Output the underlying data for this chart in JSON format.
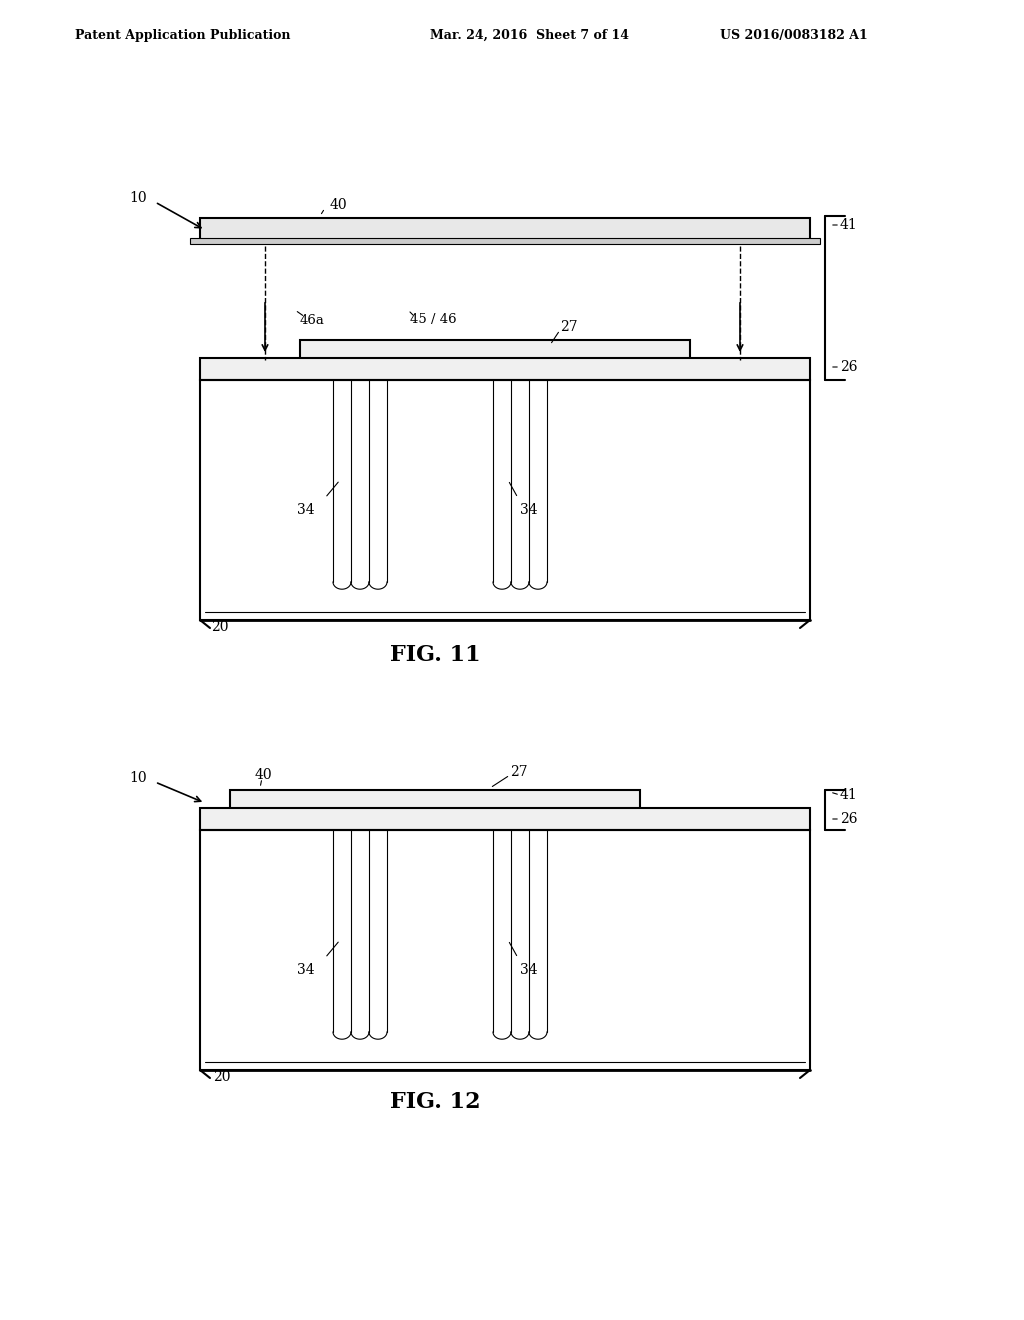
{
  "bg_color": "#ffffff",
  "header_left": "Patent Application Publication",
  "header_mid": "Mar. 24, 2016  Sheet 7 of 14",
  "header_right": "US 2016/0083182 A1",
  "fig11_label": "FIG. 11",
  "fig12_label": "FIG. 12",
  "line_color": "#000000",
  "line_width": 1.5,
  "lw_thin": 0.8,
  "lw_thick": 2.0
}
